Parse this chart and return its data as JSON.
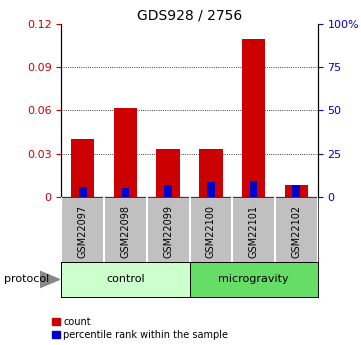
{
  "title": "GDS928 / 2756",
  "samples": [
    "GSM22097",
    "GSM22098",
    "GSM22099",
    "GSM22100",
    "GSM22101",
    "GSM22102"
  ],
  "count_values": [
    0.04,
    0.062,
    0.033,
    0.033,
    0.11,
    0.008
  ],
  "percentile_values": [
    0.007,
    0.006,
    0.008,
    0.01,
    0.011,
    0.008
  ],
  "count_color": "#cc0000",
  "percentile_color": "#0000cc",
  "ylim_left": [
    0,
    0.12
  ],
  "ylim_right": [
    0,
    100
  ],
  "yticks_left": [
    0,
    0.03,
    0.06,
    0.09,
    0.12
  ],
  "ytick_labels_left": [
    "0",
    "0.03",
    "0.06",
    "0.09",
    "0.12"
  ],
  "yticks_right": [
    0,
    25,
    50,
    75,
    100
  ],
  "ytick_labels_right": [
    "0",
    "25",
    "50",
    "75",
    "100%"
  ],
  "groups": [
    {
      "label": "control",
      "indices": [
        0,
        1,
        2
      ],
      "color": "#ccffcc"
    },
    {
      "label": "microgravity",
      "indices": [
        3,
        4,
        5
      ],
      "color": "#66dd66"
    }
  ],
  "protocol_label": "protocol",
  "legend_items": [
    "count",
    "percentile rank within the sample"
  ],
  "bar_width": 0.55,
  "blue_bar_width": 0.18,
  "background_color": "#ffffff",
  "tick_label_color_left": "#cc0000",
  "tick_label_color_right": "#0000cc",
  "sample_box_color": "#c0c0c0",
  "title_fontsize": 10,
  "tick_fontsize": 8,
  "label_fontsize": 7,
  "group_fontsize": 8
}
